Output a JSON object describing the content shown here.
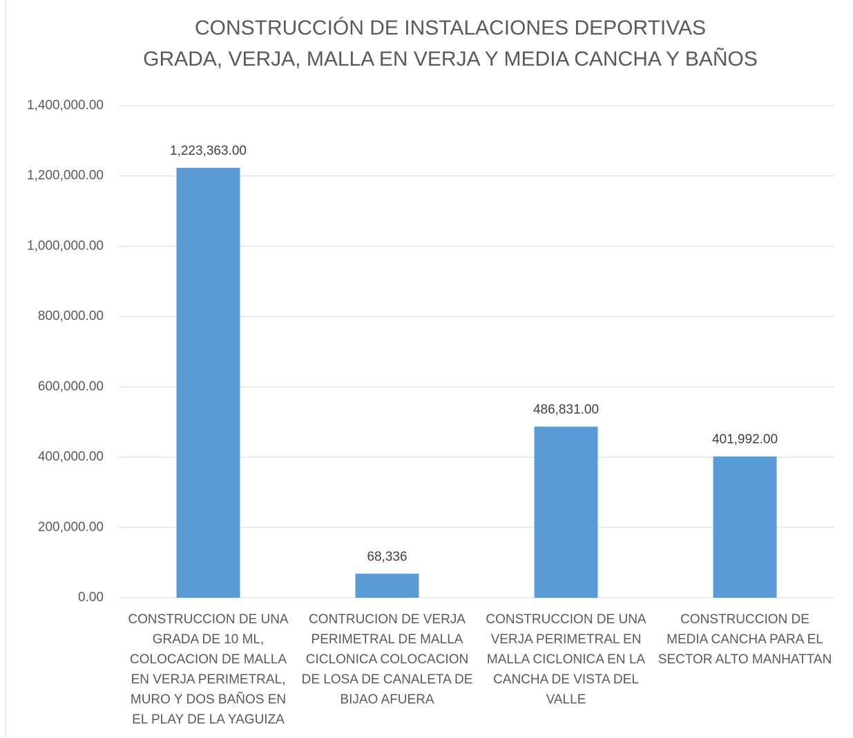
{
  "chart_data": {
    "type": "bar",
    "title": [
      "CONSTRUCCIÓN DE INSTALACIONES DEPORTIVAS",
      "GRADA, VERJA, MALLA EN VERJA Y MEDIA CANCHA Y BAÑOS"
    ],
    "categories": [
      "CONSTRUCCION DE UNA GRADA DE 10 ML, COLOCACION DE MALLA EN VERJA PERIMETRAL, MURO Y DOS BAÑOS EN EL PLAY DE LA YAGUIZA",
      "CONTRUCION DE VERJA PERIMETRAL DE MALLA CICLONICA COLOCACION DE LOSA DE CANALETA DE BIJAO AFUERA",
      "CONSTRUCCION DE UNA VERJA PERIMETRAL EN MALLA CICLONICA EN LA CANCHA DE VISTA DEL VALLE",
      "CONSTRUCCION DE MEDIA CANCHA PARA EL SECTOR ALTO MANHATTAN"
    ],
    "values": [
      1223363,
      68336,
      486831,
      401992
    ],
    "value_labels": [
      "1,223,363.00",
      "68,336",
      "486,831.00",
      "401,992.00"
    ],
    "color": "#5b9bd5",
    "ylim": [
      0,
      1400000
    ],
    "yticks": [
      {
        "value": 0,
        "label": "0.00"
      },
      {
        "value": 200000,
        "label": "200,000.00"
      },
      {
        "value": 400000,
        "label": "400,000.00"
      },
      {
        "value": 600000,
        "label": "600,000.00"
      },
      {
        "value": 800000,
        "label": "800,000.00"
      },
      {
        "value": 1000000,
        "label": "1,000,000.00"
      },
      {
        "value": 1200000,
        "label": "1,200,000.00"
      },
      {
        "value": 1400000,
        "label": "1,400,000.00"
      }
    ],
    "grid": true
  }
}
